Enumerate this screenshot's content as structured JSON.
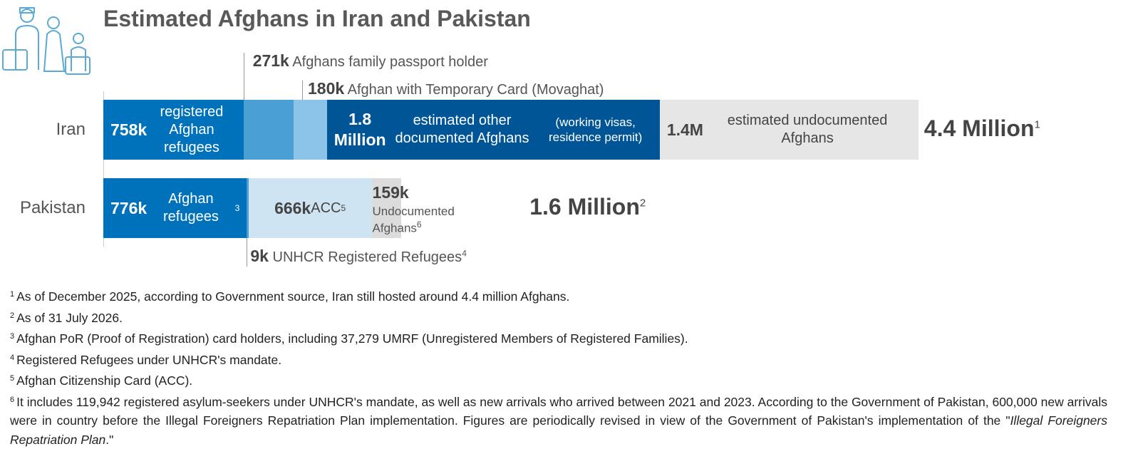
{
  "chart_data": {
    "type": "stacked-bar",
    "title": "Estimated Afghans in Iran and Pakistan",
    "bars": [
      {
        "category": "Iran",
        "total": 4400,
        "total_label": "4.4 Million",
        "total_note": "1",
        "segments": [
          {
            "value": 758,
            "value_label": "758k",
            "text": "registered Afghan refugees",
            "color": "#0072bc"
          },
          {
            "value": 271,
            "value_label": "271k",
            "text": "Afghans family passport holder",
            "color": "#4a9fd5"
          },
          {
            "value": 180,
            "value_label": "180k",
            "text": "Afghan with Temporary Card (Movaghat)",
            "color": "#8cc3e8"
          },
          {
            "value": 1800,
            "value_label": "1.8 Million",
            "text": "estimated other documented Afghans",
            "detail": "(working visas, residence permit)",
            "color": "#005596"
          },
          {
            "value": 1400,
            "value_label": "1.4M",
            "text": "estimated undocumented Afghans",
            "color": "#e6e6e6"
          }
        ]
      },
      {
        "category": "Pakistan",
        "total": 1600,
        "total_label": "1.6 Million",
        "total_note": "2",
        "segments": [
          {
            "value": 776,
            "value_label": "776k",
            "text": "Afghan refugees",
            "note": "3",
            "color": "#0072bc"
          },
          {
            "value": 9,
            "value_label": "9k",
            "text": "UNHCR Registered Refugees",
            "note": "4",
            "color": "#4a9fd5"
          },
          {
            "value": 666,
            "value_label": "666k",
            "text": "ACC",
            "note": "5",
            "color": "#cfe4f3"
          },
          {
            "value": 159,
            "value_label": "159k",
            "text": "Undocumented Afghans",
            "note": "6",
            "color": "#dcdcdc"
          }
        ]
      }
    ],
    "footnotes": [
      {
        "mark": "1",
        "text": "As of December 2025, according to Government source, Iran still hosted around 4.4 million Afghans."
      },
      {
        "mark": "2",
        "text": "As of 31 July 2026."
      },
      {
        "mark": "3",
        "text": "Afghan PoR (Proof of Registration) card holders, including 37,279 UMRF (Unregistered Members of Registered Families)."
      },
      {
        "mark": "4",
        "text": "Registered Refugees under UNHCR's mandate."
      },
      {
        "mark": "5",
        "text": "Afghan Citizenship Card (ACC)."
      },
      {
        "mark": "6",
        "text": "It includes 119,942 registered asylum-seekers under UNHCR's mandate, as well as new arrivals who arrived between 2021 and 2023. According to the Government of Pakistan, 600,000 new arrivals were in country before the Illegal Foreigners Repatriation Plan implementation. Figures are periodically revised in view of the Government of Pakistan's implementation of the \"",
        "italic": "Illegal Foreigners Repatriation Plan",
        "end": ".\""
      }
    ]
  }
}
